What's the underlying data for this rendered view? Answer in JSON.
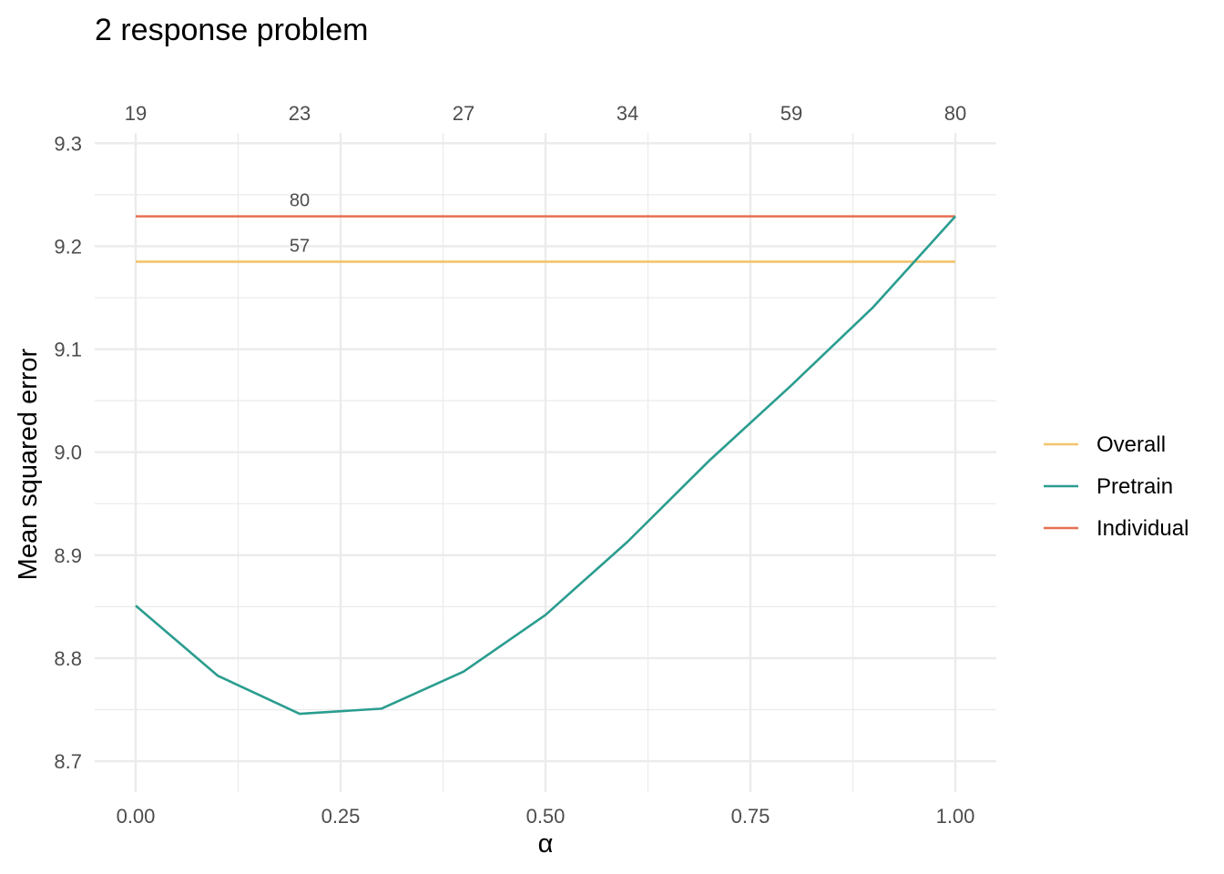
{
  "chart_data": {
    "type": "line",
    "title": "2 response problem",
    "xlabel": "α",
    "ylabel": "Mean squared error",
    "xlim": [
      -0.05,
      1.05
    ],
    "ylim": [
      8.67,
      9.31
    ],
    "x_ticks": [
      "0.00",
      "0.25",
      "0.50",
      "0.75",
      "1.00"
    ],
    "x_tick_values": [
      0,
      0.25,
      0.5,
      0.75,
      1.0
    ],
    "y_ticks": [
      "8.7",
      "8.8",
      "8.9",
      "9.0",
      "9.1",
      "9.2",
      "9.3"
    ],
    "y_tick_values": [
      8.7,
      8.8,
      8.9,
      9.0,
      9.1,
      9.2,
      9.3
    ],
    "top_axis": {
      "tick_values": [
        0,
        0.2,
        0.4,
        0.6,
        0.8,
        1.0
      ],
      "labels": [
        "19",
        "23",
        "27",
        "34",
        "59",
        "80"
      ]
    },
    "grid": true,
    "legend_position": "right",
    "series": [
      {
        "name": "Overall",
        "color": "#f2c46d",
        "x": [
          0,
          1.0
        ],
        "y": [
          9.185,
          9.185
        ]
      },
      {
        "name": "Pretrain",
        "color": "#2a9d8f",
        "x": [
          0,
          0.1,
          0.2,
          0.3,
          0.4,
          0.5,
          0.6,
          0.7,
          0.8,
          0.9,
          1.0
        ],
        "y": [
          8.851,
          8.783,
          8.746,
          8.751,
          8.787,
          8.842,
          8.913,
          8.992,
          9.065,
          9.141,
          9.229
        ]
      },
      {
        "name": "Individual",
        "color": "#e76f51",
        "x": [
          0,
          1.0
        ],
        "y": [
          9.229,
          9.229
        ]
      }
    ],
    "annotations": [
      {
        "text": "80",
        "x": 0.2,
        "y": 9.245
      },
      {
        "text": "57",
        "x": 0.2,
        "y": 9.201
      }
    ]
  }
}
